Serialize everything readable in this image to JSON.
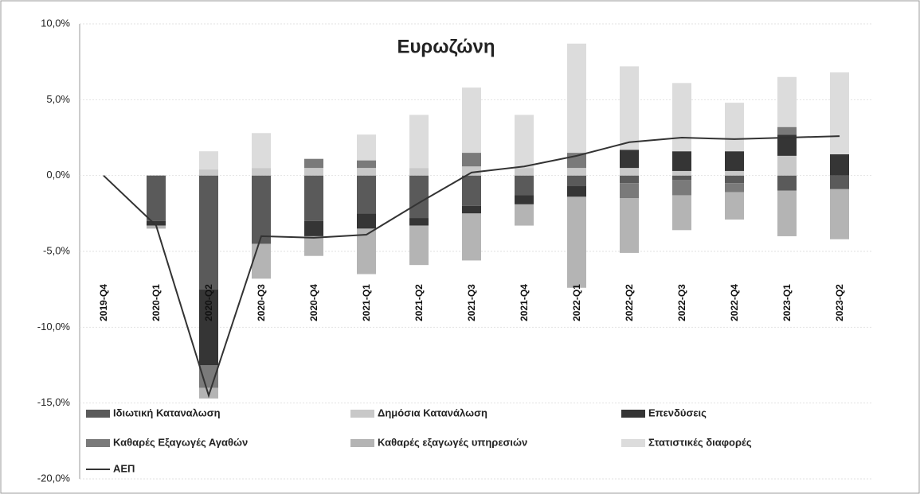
{
  "chart_data": {
    "type": "stacked_bar_line",
    "title": "Ευρωζώνη",
    "categories": [
      "2019-Q4",
      "2020-Q1",
      "2020-Q2",
      "2020-Q3",
      "2020-Q4",
      "2021-Q1",
      "2021-Q2",
      "2021-Q3",
      "2021-Q4",
      "2022-Q1",
      "2022-Q2",
      "2022-Q3",
      "2022-Q4",
      "2023-Q1",
      "2023-Q2"
    ],
    "series": [
      {
        "name": "Ιδιωτική Καταναλωση",
        "color": "#5a5a5a",
        "values": [
          null,
          -3.0,
          -7.5,
          -4.5,
          -3.0,
          -2.5,
          -2.8,
          -2.0,
          -1.3,
          -0.7,
          -0.5,
          -0.3,
          -0.5,
          -1.0,
          -0.9
        ]
      },
      {
        "name": "Δημόσια Κατανάλωση",
        "color": "#c8c8c8",
        "values": [
          null,
          0,
          0.4,
          0.5,
          0.5,
          0.5,
          0.5,
          0.6,
          0.5,
          0.5,
          0.5,
          0.3,
          0.3,
          1.3,
          0
        ]
      },
      {
        "name": "Επενδύσεις",
        "color": "#353535",
        "values": [
          null,
          -0.3,
          -5.0,
          0,
          -1.0,
          -1.0,
          -0.5,
          -0.5,
          -0.6,
          -0.7,
          1.2,
          1.3,
          1.3,
          1.4,
          1.4
        ]
      },
      {
        "name": "Καθαρές Εξαγωγές Αγαθών",
        "color": "#7a7a7a",
        "values": [
          null,
          0,
          -1.5,
          0,
          0.6,
          0.5,
          0,
          0.9,
          0,
          1.0,
          -1.0,
          -1.0,
          -0.6,
          0.5,
          0
        ]
      },
      {
        "name": "Καθαρές εξαγωγές υπηρεσιών",
        "color": "#b4b4b4",
        "values": [
          null,
          -0.2,
          -0.7,
          -2.3,
          -1.3,
          -3.0,
          -2.6,
          -3.1,
          -1.4,
          -6.0,
          -3.6,
          -2.3,
          -1.8,
          -3.0,
          -3.3
        ]
      },
      {
        "name": "Στατιστικές διαφορές",
        "color": "#dcdcdc",
        "values": [
          null,
          0,
          1.2,
          2.3,
          0,
          1.7,
          3.5,
          4.3,
          3.5,
          7.2,
          5.5,
          4.5,
          3.2,
          3.3,
          5.4
        ]
      },
      {
        "name": "ΑΕΠ",
        "color": "#333333",
        "kind": "line",
        "values": [
          0,
          -3.3,
          -14.5,
          -4.0,
          -4.1,
          -3.9,
          -1.8,
          0.2,
          0.6,
          1.3,
          2.2,
          2.5,
          2.4,
          2.5,
          2.6
        ]
      }
    ],
    "ylim": [
      -20,
      10
    ],
    "yticks": [
      {
        "value": -20,
        "label": "-20,0%"
      },
      {
        "value": -15,
        "label": "-15,0%"
      },
      {
        "value": -10,
        "label": "-10,0%"
      },
      {
        "value": -5,
        "label": "-5,0%"
      },
      {
        "value": 0,
        "label": "0,0%"
      },
      {
        "value": 5,
        "label": "5,0%"
      },
      {
        "value": 10,
        "label": "10,0%"
      }
    ],
    "grid": true
  }
}
